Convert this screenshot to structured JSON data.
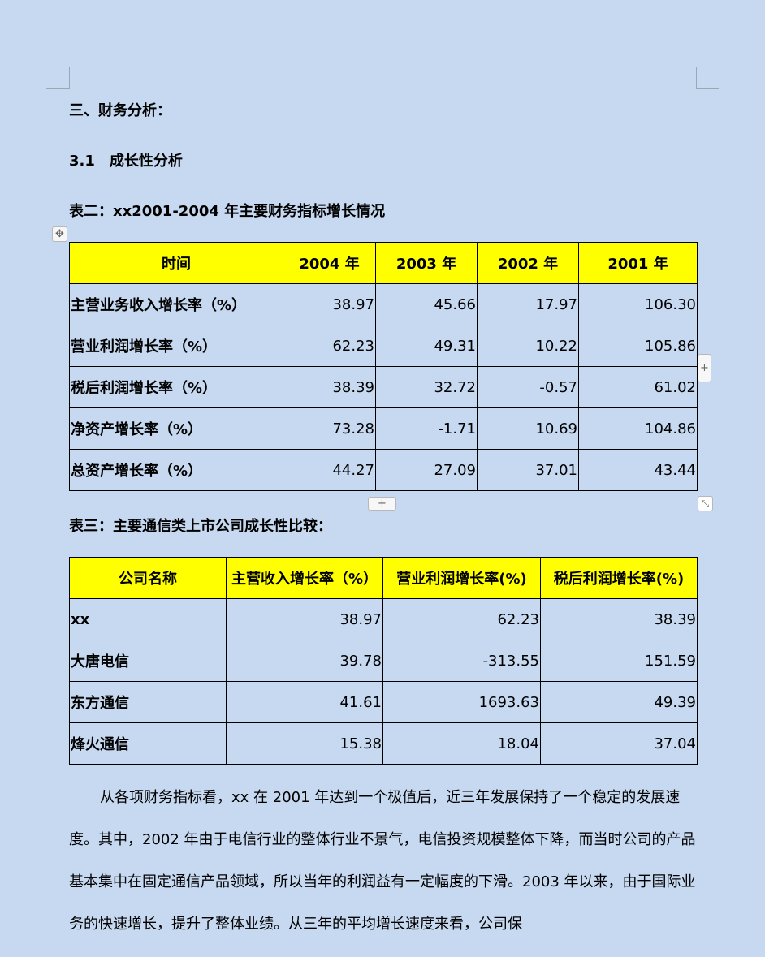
{
  "headings": {
    "section": "三、财务分析：",
    "subsection": "3.1　成长性分析",
    "table2_caption": "表二：xx2001-2004 年主要财务指标增长情况",
    "table3_caption": "表三：主要通信类上市公司成长性比较："
  },
  "table2": {
    "headers": [
      "时间",
      "2004 年",
      "2003 年",
      "2002 年",
      "2001 年"
    ],
    "rows": [
      [
        "主营业务收入增长率（%）",
        "38.97",
        "45.66",
        "17.97",
        "106.30"
      ],
      [
        "营业利润增长率（%）",
        "62.23",
        "49.31",
        "10.22",
        "105.86"
      ],
      [
        "税后利润增长率（%）",
        "38.39",
        "32.72",
        "-0.57",
        "61.02"
      ],
      [
        "净资产增长率（%）",
        "73.28",
        "-1.71",
        "10.69",
        "104.86"
      ],
      [
        "总资产增长率（%）",
        "44.27",
        "27.09",
        "37.01",
        "43.44"
      ]
    ]
  },
  "table3": {
    "headers": [
      "公司名称",
      "主营收入增长率（%）",
      "营业利润增长率(%)",
      "税后利润增长率(%)"
    ],
    "rows": [
      [
        "xx",
        "38.97",
        "62.23",
        "38.39"
      ],
      [
        "大唐电信",
        "39.78",
        "-313.55",
        "151.59"
      ],
      [
        "东方通信",
        "41.61",
        "1693.63",
        "49.39"
      ],
      [
        "烽火通信",
        "15.38",
        "18.04",
        "37.04"
      ]
    ]
  },
  "controls": {
    "add_row": "+",
    "add_column": "+",
    "move_icon": "move-icon",
    "resize_icon": "resize-icon"
  },
  "paragraph": "从各项财务指标看，xx 在 2001 年达到一个极值后，近三年发展保持了一个稳定的发展速度。其中，2002 年由于电信行业的整体行业不景气，电信投资规模整体下降，而当时公司的产品基本集中在固定通信产品领域，所以当年的利润益有一定幅度的下滑。2003 年以来，由于国际业务的快速增长，提升了整体业绩。从三年的平均增长速度来看，公司保",
  "colors": {
    "page": "#c6d9f0",
    "header_fill": "#ffff00"
  }
}
